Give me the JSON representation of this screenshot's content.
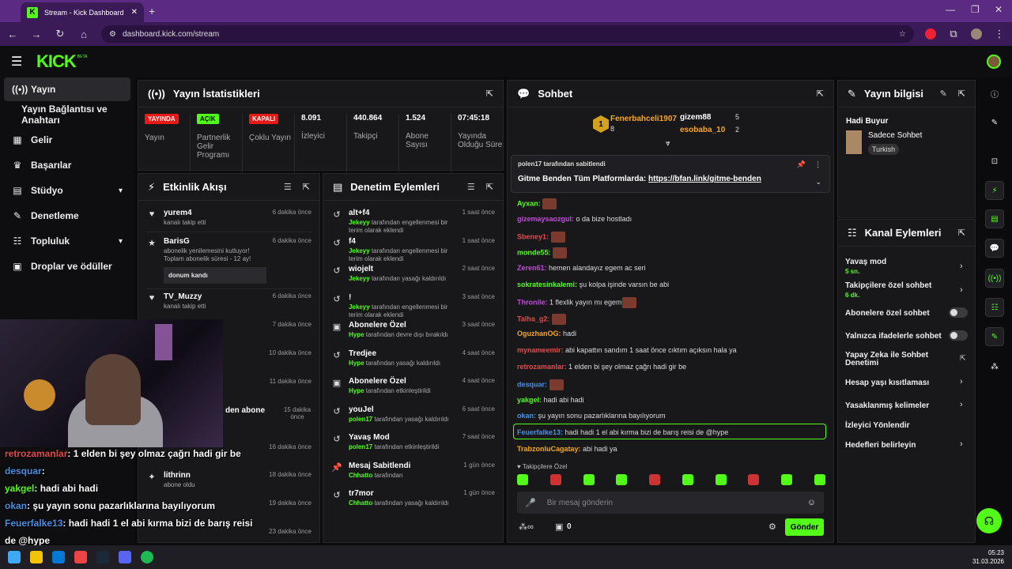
{
  "browser": {
    "tab_title": "Stream - Kick Dashboard",
    "url": "dashboard.kick.com/stream"
  },
  "header": {
    "logo": "KICK",
    "beta": "BETA"
  },
  "sidebar": {
    "items": [
      {
        "label": "Yayın",
        "icon": "broadcast-icon"
      },
      {
        "label": "Yayın Bağlantısı ve Anahtarı",
        "icon": ""
      },
      {
        "label": "Gelir",
        "icon": "money-icon"
      },
      {
        "label": "Başarılar",
        "icon": "trophy-icon"
      },
      {
        "label": "Stüdyo",
        "icon": "studio-icon"
      },
      {
        "label": "Denetleme",
        "icon": "wrench-icon"
      },
      {
        "label": "Topluluk",
        "icon": "community-icon"
      },
      {
        "label": "Droplar ve ödüller",
        "icon": "gift-icon"
      }
    ]
  },
  "stats": {
    "title": "Yayın İstatistikleri",
    "cols": [
      {
        "badge": "YAYINDA",
        "label": "Yayın"
      },
      {
        "badge": "AÇIK",
        "label": "Partnerlik Gelir Programı"
      },
      {
        "badge": "KAPALI",
        "label": "Çoklu Yayın"
      },
      {
        "value": "8.091",
        "label": "İzleyici"
      },
      {
        "value": "440.864",
        "label": "Takipçi"
      },
      {
        "value": "1.524",
        "label": "Abone Sayısı"
      },
      {
        "value": "07:45:18",
        "label": "Yayında Olduğu Süre"
      }
    ]
  },
  "activity": {
    "title": "Etkinlik Akışı",
    "items": [
      {
        "name": "yurem4",
        "sub": "kanalı takip etti",
        "time": "6 dakika önce"
      },
      {
        "name": "BarisG",
        "sub": "abonelik yenilemesini kutluyor! Toplam abonelik süresi - 12 ay!",
        "extra": "donum kandı",
        "time": "6 dakika önce"
      },
      {
        "name": "TV_Muzzy",
        "sub": "kanalı takip etti",
        "time": "6 dakika önce"
      },
      {
        "time": "7 dakika önce"
      },
      {
        "time": "10 dakika önce"
      },
      {
        "time": "11 dakika önce"
      },
      {
        "name": "den abone",
        "time": "15 dakika önce"
      },
      {
        "time": "16 dakika önce"
      },
      {
        "name": "lithrinn",
        "sub": "abone oldu",
        "time": "18 dakika önce"
      },
      {
        "time": "19 dakika önce"
      },
      {
        "time": "23 dakika önce"
      }
    ]
  },
  "moderation": {
    "title": "Denetim Eylemleri",
    "items": [
      {
        "name": "alt+f4",
        "by": "Jekeyy",
        "sub": "tarafından engellenmesi bir terim olarak eklendi",
        "time": "1 saat önce"
      },
      {
        "name": "f4",
        "by": "Jekeyy",
        "sub": "tarafından engellenmesi bir terim olarak eklendi",
        "time": "1 saat önce"
      },
      {
        "name": "wiojelt",
        "by": "Jekeyy",
        "sub": "tarafından yasağı kaldırıldı",
        "time": "2 saat önce"
      },
      {
        "name": "!",
        "by": "Jekeyy",
        "sub": "tarafından engellenmesi bir terim olarak eklendi",
        "time": "3 saat önce"
      },
      {
        "name": "Abonelere Özel",
        "by": "Hype",
        "sub": "tarafından devre dışı bırakıldı",
        "time": "3 saat önce"
      },
      {
        "name": "Tredjee",
        "by": "Hype",
        "sub": "tarafından yasağı kaldırıldı",
        "time": "4 saat önce"
      },
      {
        "name": "Abonelere Özel",
        "by": "Hype",
        "sub": "tarafından etkinleştirildi",
        "time": "4 saat önce"
      },
      {
        "name": "youJel",
        "by": "polen17",
        "sub": "tarafından yasağı kaldırıldı",
        "time": "6 saat önce"
      },
      {
        "name": "Yavaş Mod",
        "by": "polen17",
        "sub": "tarafından etkinleştirildi",
        "time": "7 saat önce"
      },
      {
        "name": "Mesaj Sabitlendi",
        "by": "Chhatto",
        "sub": "tarafından",
        "time": "1 gün önce"
      },
      {
        "name": "tr7mor",
        "by": "Chhatto",
        "sub": "tarafından yasağı kaldırıldı",
        "time": "1 gün önce"
      }
    ]
  },
  "chat": {
    "title": "Sohbet",
    "top": [
      {
        "rank": "1",
        "name": "Fenerbahceli1907",
        "count": "8"
      },
      {
        "name": "gizem88",
        "count": "5"
      },
      {
        "name": "esobaba_10",
        "count": "2"
      }
    ],
    "pinned_by": "polen17 tarafından sabitlendi",
    "pinned_text": "Gitme Benden Tüm Platformlarda:",
    "pinned_link": "https://bfan.link/gitme-benden",
    "messages": [
      {
        "n": "Ayxan:",
        "c": "#53fc18",
        "t": ""
      },
      {
        "n": "gizemaysaozgul:",
        "c": "#c04bd8",
        "t": "o da bize hostladı"
      },
      {
        "n": "Sbeney1:",
        "c": "#e24a4a",
        "t": ""
      },
      {
        "n": "monde55:",
        "c": "#53fc18",
        "t": ""
      },
      {
        "n": "Zeren61:",
        "c": "#c04bd8",
        "t": "hemen alandayız egem ac seri"
      },
      {
        "n": "sokratesinkalemi:",
        "c": "#53fc18",
        "t": "şu kolpa işinde varsın be abi"
      },
      {
        "n": "Thronile:",
        "c": "#c04bd8",
        "t": "1 flexlik yayın mı egem"
      },
      {
        "n": "Talha_g2:",
        "c": "#e24a4a",
        "t": ""
      },
      {
        "n": "OguzhanOG:",
        "c": "#f5a623",
        "t": "hadi"
      },
      {
        "n": "mynameemir:",
        "c": "#e24a4a",
        "t": "abi kapattın sandım 1 saat önce cıktım açıksın hala ya"
      },
      {
        "n": "retrozamanlar:",
        "c": "#e24a4a",
        "t": "1 elden bi şey olmaz çağrı hadi gir be"
      },
      {
        "n": "desquar:",
        "c": "#4a90e2",
        "t": ""
      },
      {
        "n": "yakgel:",
        "c": "#53fc18",
        "t": "hadi abi hadi"
      },
      {
        "n": "okan:",
        "c": "#4a90e2",
        "t": "şu yayın sonu pazarlıklarına bayılıyorum"
      },
      {
        "n": "Feuerfalke13:",
        "c": "#4a90e2",
        "t": "hadi hadi 1 el abi kırma bizi de barış reisi de @hype"
      },
      {
        "n": "TrabzonluCagatay:",
        "c": "#f5a623",
        "t": "abi hadi ya"
      }
    ],
    "followers_only": "Takipçilere Özel",
    "input_placeholder": "Bir mesaj gönderin",
    "points": "0",
    "send": "Gönder"
  },
  "stream_info": {
    "title": "Yayın bilgisi",
    "stream_title": "Hadi Buyur",
    "category": "Sadece Sohbet",
    "tag": "Turkish"
  },
  "channel_actions": {
    "title": "Kanal Eylemleri",
    "items": [
      {
        "label": "Yavaş mod",
        "sub": "5 sn."
      },
      {
        "label": "Takipçilere özel sohbet",
        "sub": "6 dk."
      },
      {
        "label": "Abonelere özel sohbet"
      },
      {
        "label": "Yalnızca ifadelerle sohbet"
      },
      {
        "label": "Yapay Zeka ile Sohbet Denetimi"
      },
      {
        "label": "Hesap yaşı kısıtlaması"
      },
      {
        "label": "Yasaklanmış kelimeler"
      },
      {
        "label": "İzleyici Yönlendir"
      },
      {
        "label": "Hedefleri belirleyin"
      }
    ]
  },
  "overlay": [
    {
      "n": "retrozamanlar",
      "c": "#e24a4a",
      "t": ": 1 elden bi şey olmaz çağrı hadi gir be"
    },
    {
      "n": "desquar",
      "c": "#4a90e2",
      "t": ":"
    },
    {
      "n": "yakgel",
      "c": "#53fc18",
      "t": ": hadi abi hadi"
    },
    {
      "n": "okan",
      "c": "#4a90e2",
      "t": ": şu yayın sonu pazarlıklarına bayılıyorum"
    },
    {
      "n": "Feuerfalke13",
      "c": "#4a90e2",
      "t": ": hadi hadi 1 el abi kırma bizi de barış reisi"
    },
    {
      "n": "",
      "c": "#fff",
      "t": "de @hype"
    }
  ],
  "taskbar": {
    "time": "05:23",
    "date": "31.03.2026"
  },
  "colors": {
    "accent": "#53fc18",
    "live": "#e91916",
    "panel": "#18181b"
  }
}
